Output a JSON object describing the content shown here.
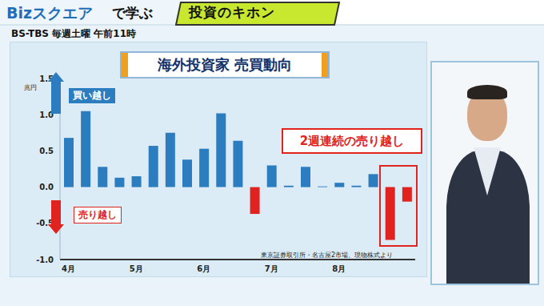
{
  "chart_data": {
    "type": "bar",
    "title": "海外投資家 売買動向",
    "y_label": "兆円",
    "categories": [
      "4月",
      null,
      null,
      null,
      "5月",
      null,
      null,
      null,
      "6月",
      null,
      null,
      null,
      "7月",
      null,
      null,
      null,
      "8月",
      null,
      null,
      null,
      null
    ],
    "values": [
      0.68,
      1.05,
      0.28,
      0.13,
      0.15,
      0.57,
      0.75,
      0.38,
      0.53,
      1.02,
      0.64,
      -0.37,
      0.3,
      0.02,
      0.28,
      0.01,
      0.06,
      0.02,
      0.18,
      -0.73,
      -0.2
    ],
    "colors": [
      "#2c7cc0",
      "#2c7cc0",
      "#2c7cc0",
      "#2c7cc0",
      "#2c7cc0",
      "#2c7cc0",
      "#2c7cc0",
      "#2c7cc0",
      "#2c7cc0",
      "#2c7cc0",
      "#2c7cc0",
      "#e0231e",
      "#2c7cc0",
      "#2c7cc0",
      "#2c7cc0",
      "#2c7cc0",
      "#2c7cc0",
      "#2c7cc0",
      "#2c7cc0",
      "#e0231e",
      "#e0231e"
    ],
    "ylim": [
      -1,
      1.5
    ],
    "yticks": [
      {
        "value": -1,
        "label": "-1.0"
      },
      -0.5,
      {
        "value": 0,
        "label": "0.0"
      },
      0.5,
      {
        "value": 1,
        "label": "1.0"
      },
      1.5
    ],
    "grid": false,
    "annotations": [
      "買い越し",
      "売り越し",
      "2週連続の売り越し"
    ],
    "source": "東京証券取引所・名古屋2市場、現物株式より"
  },
  "header": {
    "program": "Bizスクエア",
    "learn": "で学ぶ",
    "series": "投資のキホン"
  },
  "broadcast": "BS-TBS 毎週土曜 午前11時"
}
